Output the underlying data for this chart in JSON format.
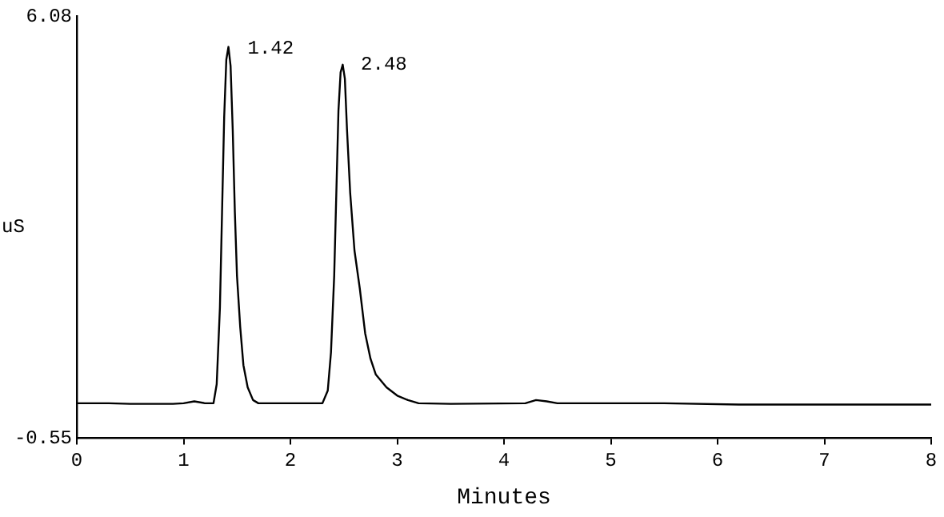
{
  "chart_data": {
    "type": "line",
    "xlabel": "Minutes",
    "ylabel": "uS",
    "series": [
      {
        "color": "#000000",
        "x": [
          0,
          0.3,
          0.5,
          0.9,
          1.0,
          1.1,
          1.2,
          1.28,
          1.31,
          1.34,
          1.36,
          1.38,
          1.4,
          1.42,
          1.44,
          1.46,
          1.48,
          1.5,
          1.53,
          1.56,
          1.6,
          1.65,
          1.7,
          2.0,
          2.3,
          2.35,
          2.38,
          2.41,
          2.43,
          2.45,
          2.47,
          2.49,
          2.51,
          2.53,
          2.56,
          2.6,
          2.65,
          2.7,
          2.75,
          2.8,
          2.9,
          3.0,
          3.1,
          3.2,
          3.5,
          4.2,
          4.3,
          4.4,
          4.5,
          5.5,
          6.2,
          7.0,
          8.0
        ],
        "values": [
          0,
          0,
          -0.01,
          -0.01,
          0,
          0.03,
          0,
          0,
          0.3,
          1.5,
          3.0,
          4.5,
          5.4,
          5.6,
          5.3,
          4.3,
          3.0,
          2.0,
          1.2,
          0.6,
          0.25,
          0.05,
          0,
          0,
          0,
          0.2,
          0.8,
          2.0,
          3.3,
          4.6,
          5.2,
          5.32,
          5.1,
          4.3,
          3.3,
          2.4,
          1.8,
          1.1,
          0.7,
          0.45,
          0.25,
          0.12,
          0.05,
          0,
          -0.01,
          0,
          0.05,
          0.03,
          0,
          0,
          -0.02,
          -0.02,
          -0.02
        ]
      }
    ],
    "xlim": [
      0,
      8
    ],
    "xticks": [
      0,
      1,
      2,
      3,
      4,
      5,
      6,
      7,
      8
    ],
    "ylim": [
      -0.55,
      6.08
    ],
    "yticks": [
      -0.55,
      6.08
    ],
    "grid": false,
    "legend": false,
    "marker": "none",
    "line_style": "solid",
    "annotations": [
      {
        "text": "1.42",
        "x": 1.42,
        "y": 5.6
      },
      {
        "text": "2.48",
        "x": 2.48,
        "y": 5.32
      }
    ]
  }
}
